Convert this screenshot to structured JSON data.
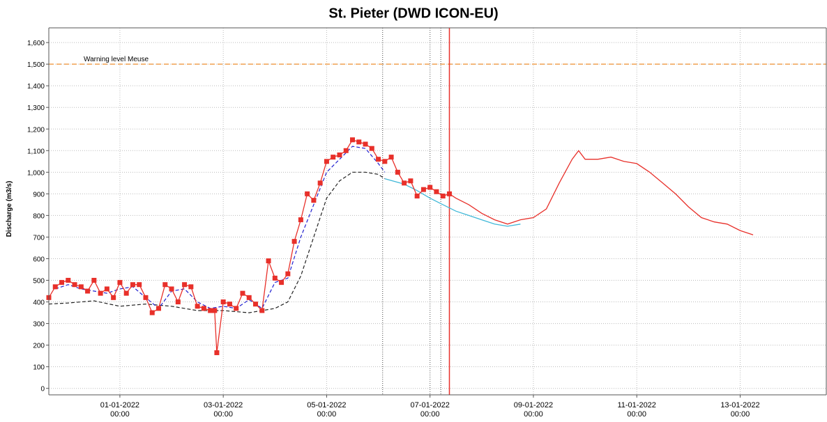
{
  "chart_data": {
    "type": "line",
    "title": "St. Pieter (DWD ICON-EU)",
    "y_label": "Discharge (m3/s)",
    "ylim": [
      -30,
      1668
    ],
    "yticks": [
      0,
      100,
      200,
      300,
      400,
      500,
      600,
      700,
      800,
      900,
      {
        "value": 1000,
        "label": "1,000"
      },
      {
        "value": 1100,
        "label": "1,100"
      },
      {
        "value": 1200,
        "label": "1,200"
      },
      {
        "value": 1300,
        "label": "1,300"
      },
      {
        "value": 1400,
        "label": "1,400"
      },
      {
        "value": 1500,
        "label": "1,500"
      },
      {
        "value": 1600,
        "label": "1,600"
      }
    ],
    "xlim": [
      "30-12-2021 15:00",
      "14-01-2022 16:00"
    ],
    "xticks": [
      "01-01-2022 00:00",
      "03-01-2022 00:00",
      "05-01-2022 00:00",
      "07-01-2022 00:00",
      "09-01-2022 00:00",
      "11-01-2022 00:00",
      "13-01-2022 00:00"
    ],
    "grid": true,
    "hlines": [
      {
        "value": 1500,
        "label": "Warning level Meuse",
        "color": "#f0a050"
      }
    ],
    "vlines": [
      {
        "x": "06-01-2022 02:00",
        "color": "#444444"
      },
      {
        "x": "07-01-2022 00:00",
        "color": "#666666"
      },
      {
        "x": "07-01-2022 05:00",
        "color": "#444444"
      },
      {
        "x": "07-01-2022 09:00",
        "color": "#e8302a",
        "solid": true
      }
    ],
    "series": [
      {
        "color": "#222222",
        "dash": true,
        "x": [
          "30-12-2021 15:00",
          "31-12-2021 00:00",
          "31-12-2021 12:00",
          "01-01-2022 00:00",
          "01-01-2022 12:00",
          "02-01-2022 00:00",
          "02-01-2022 12:00",
          "03-01-2022 00:00",
          "03-01-2022 12:00",
          "03-01-2022 18:00",
          "04-01-2022 00:00",
          "04-01-2022 06:00",
          "04-01-2022 12:00",
          "04-01-2022 18:00",
          "05-01-2022 00:00",
          "05-01-2022 06:00",
          "05-01-2022 12:00",
          "05-01-2022 18:00",
          "06-01-2022 00:00",
          "06-01-2022 03:00"
        ],
        "values": [
          390,
          395,
          405,
          380,
          390,
          380,
          360,
          360,
          350,
          360,
          370,
          400,
          520,
          700,
          880,
          960,
          1000,
          1000,
          990,
          970
        ]
      },
      {
        "color": "#2020d0",
        "dash": true,
        "x": [
          "30-12-2021 18:00",
          "31-12-2021 00:00",
          "31-12-2021 06:00",
          "31-12-2021 12:00",
          "31-12-2021 18:00",
          "01-01-2022 00:00",
          "01-01-2022 06:00",
          "01-01-2022 12:00",
          "01-01-2022 18:00",
          "02-01-2022 00:00",
          "02-01-2022 06:00",
          "02-01-2022 12:00",
          "02-01-2022 18:00",
          "03-01-2022 00:00",
          "03-01-2022 06:00",
          "03-01-2022 12:00",
          "03-01-2022 18:00",
          "04-01-2022 00:00",
          "04-01-2022 06:00",
          "04-01-2022 12:00",
          "04-01-2022 18:00",
          "05-01-2022 00:00",
          "05-01-2022 06:00",
          "05-01-2022 12:00",
          "05-01-2022 18:00",
          "06-01-2022 00:00",
          "06-01-2022 03:00"
        ],
        "values": [
          460,
          480,
          460,
          450,
          440,
          460,
          470,
          420,
          370,
          450,
          460,
          400,
          370,
          380,
          370,
          410,
          370,
          490,
          510,
          700,
          850,
          1000,
          1060,
          1120,
          1110,
          1040,
          1000
        ]
      },
      {
        "color": "#40b8d8",
        "x": [
          "06-01-2022 03:00",
          "06-01-2022 12:00",
          "06-01-2022 18:00",
          "07-01-2022 00:00",
          "07-01-2022 06:00",
          "07-01-2022 12:00",
          "07-01-2022 18:00",
          "08-01-2022 00:00",
          "08-01-2022 06:00",
          "08-01-2022 12:00",
          "08-01-2022 18:00"
        ],
        "values": [
          970,
          945,
          915,
          880,
          850,
          820,
          800,
          780,
          760,
          750,
          760
        ]
      },
      {
        "color": "#e8302a",
        "marker": "square",
        "x": [
          "30-12-2021 15:00",
          "30-12-2021 18:00",
          "30-12-2021 21:00",
          "31-12-2021 00:00",
          "31-12-2021 03:00",
          "31-12-2021 06:00",
          "31-12-2021 09:00",
          "31-12-2021 12:00",
          "31-12-2021 15:00",
          "31-12-2021 18:00",
          "31-12-2021 21:00",
          "01-01-2022 00:00",
          "01-01-2022 03:00",
          "01-01-2022 06:00",
          "01-01-2022 09:00",
          "01-01-2022 12:00",
          "01-01-2022 15:00",
          "01-01-2022 18:00",
          "01-01-2022 21:00",
          "02-01-2022 00:00",
          "02-01-2022 03:00",
          "02-01-2022 06:00",
          "02-01-2022 09:00",
          "02-01-2022 12:00",
          "02-01-2022 15:00",
          "02-01-2022 18:00",
          "02-01-2022 20:00",
          "02-01-2022 21:00",
          "03-01-2022 00:00",
          "03-01-2022 03:00",
          "03-01-2022 06:00",
          "03-01-2022 09:00",
          "03-01-2022 12:00",
          "03-01-2022 15:00",
          "03-01-2022 18:00",
          "03-01-2022 21:00",
          "04-01-2022 00:00",
          "04-01-2022 03:00",
          "04-01-2022 06:00",
          "04-01-2022 09:00",
          "04-01-2022 12:00",
          "04-01-2022 15:00",
          "04-01-2022 18:00",
          "04-01-2022 21:00",
          "05-01-2022 00:00",
          "05-01-2022 03:00",
          "05-01-2022 06:00",
          "05-01-2022 09:00",
          "05-01-2022 12:00",
          "05-01-2022 15:00",
          "05-01-2022 18:00",
          "05-01-2022 21:00",
          "06-01-2022 00:00",
          "06-01-2022 03:00",
          "06-01-2022 06:00",
          "06-01-2022 09:00",
          "06-01-2022 12:00",
          "06-01-2022 15:00",
          "06-01-2022 18:00",
          "06-01-2022 21:00",
          "07-01-2022 00:00",
          "07-01-2022 03:00",
          "07-01-2022 06:00",
          "07-01-2022 09:00"
        ],
        "values": [
          420,
          470,
          490,
          500,
          480,
          470,
          450,
          500,
          440,
          460,
          420,
          490,
          440,
          480,
          480,
          420,
          350,
          370,
          480,
          460,
          400,
          480,
          470,
          380,
          370,
          360,
          360,
          165,
          400,
          390,
          370,
          440,
          420,
          390,
          360,
          590,
          510,
          490,
          530,
          680,
          780,
          900,
          870,
          950,
          1050,
          1070,
          1080,
          1100,
          1150,
          1140,
          1130,
          1110,
          1060,
          1050,
          1070,
          1000,
          950,
          960,
          890,
          920,
          930,
          910,
          890,
          900
        ]
      },
      {
        "color": "#e8302a",
        "x": [
          "07-01-2022 09:00",
          "07-01-2022 12:00",
          "07-01-2022 18:00",
          "08-01-2022 00:00",
          "08-01-2022 06:00",
          "08-01-2022 12:00",
          "08-01-2022 18:00",
          "09-01-2022 00:00",
          "09-01-2022 06:00",
          "09-01-2022 12:00",
          "09-01-2022 18:00",
          "09-01-2022 21:00",
          "10-01-2022 00:00",
          "10-01-2022 06:00",
          "10-01-2022 12:00",
          "10-01-2022 18:00",
          "11-01-2022 00:00",
          "11-01-2022 06:00",
          "11-01-2022 12:00",
          "11-01-2022 18:00",
          "12-01-2022 00:00",
          "12-01-2022 06:00",
          "12-01-2022 12:00",
          "12-01-2022 18:00",
          "13-01-2022 00:00",
          "13-01-2022 06:00"
        ],
        "values": [
          900,
          880,
          850,
          810,
          780,
          760,
          780,
          790,
          830,
          950,
          1060,
          1100,
          1060,
          1060,
          1070,
          1050,
          1040,
          1000,
          950,
          900,
          840,
          790,
          770,
          760,
          730,
          710
        ]
      }
    ]
  }
}
